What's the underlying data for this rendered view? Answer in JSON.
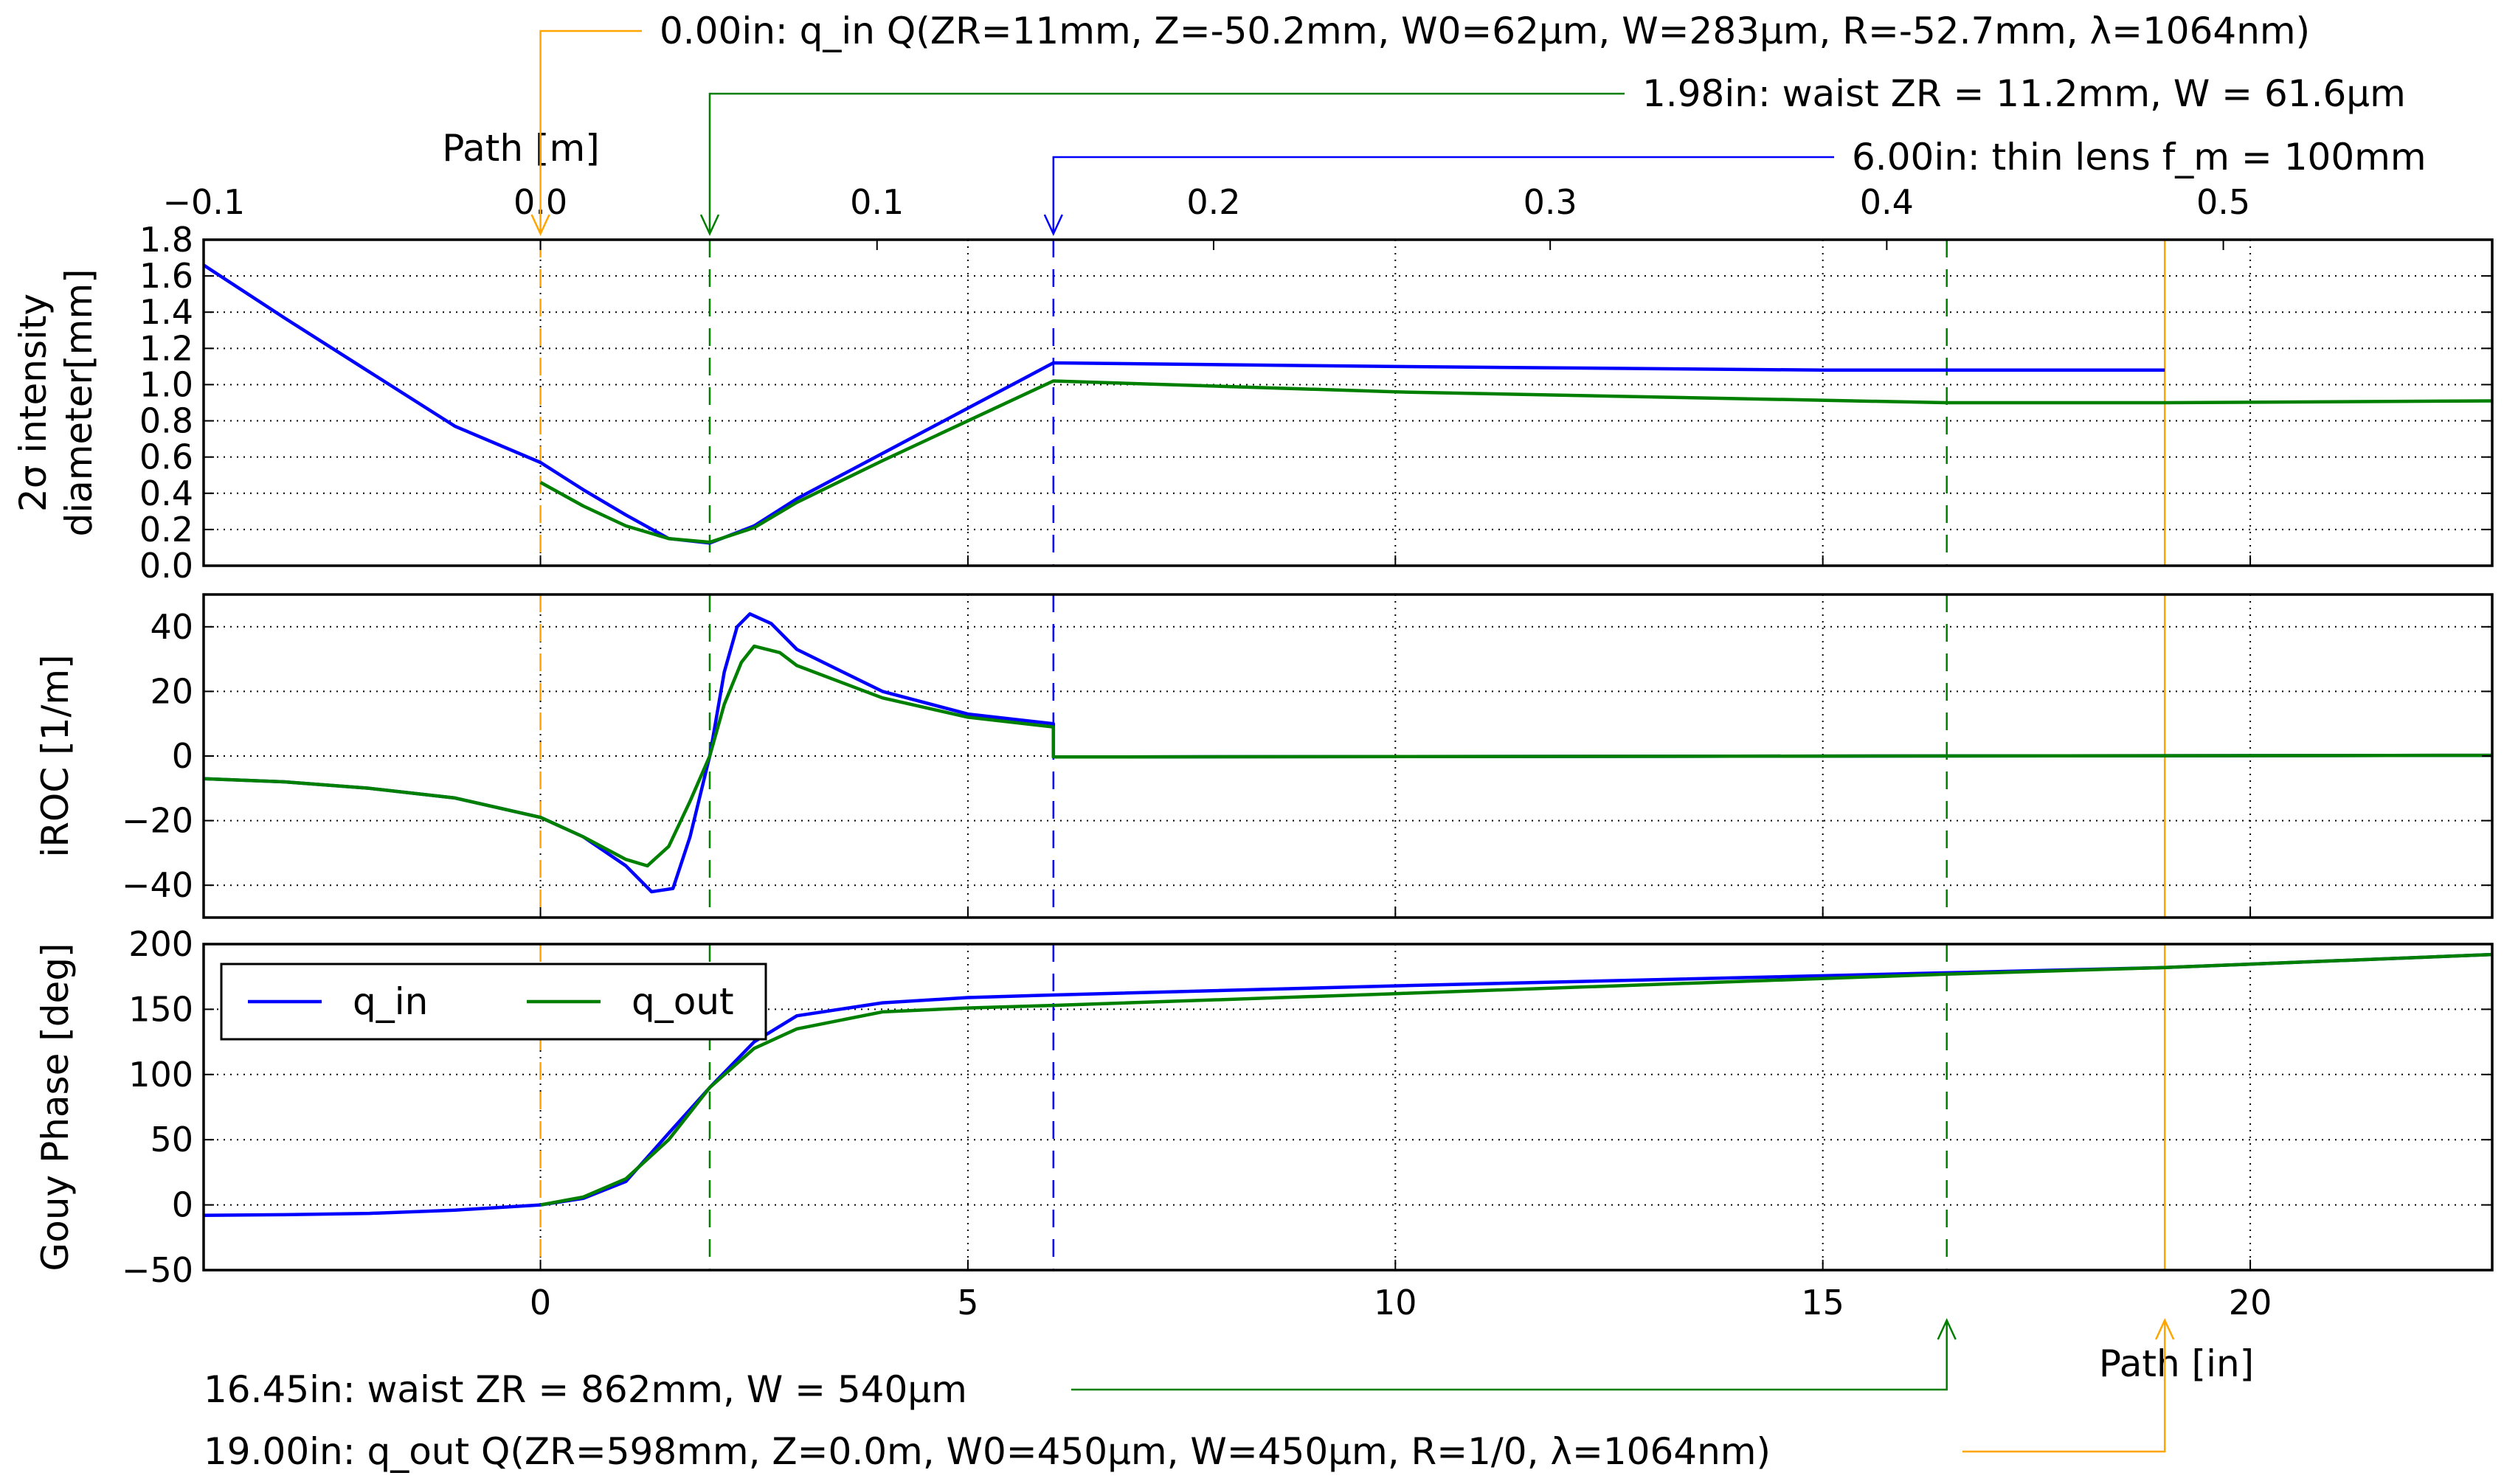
{
  "chart_data": {
    "type": "line",
    "x_unit": "in",
    "xlim": [
      -3.94,
      22.83
    ],
    "x_bottom_label": "Path [in]",
    "x_top_label": "Path [m]",
    "x_bottom_ticks": [
      "0",
      "5",
      "10",
      "15",
      "20"
    ],
    "x_top_ticks": [
      "−0.1",
      "0.0",
      "0.1",
      "0.2",
      "0.3",
      "0.4",
      "0.5"
    ],
    "grid": true,
    "legend": {
      "position": "upper-left of bottom panel",
      "entries": [
        {
          "label": "q_in",
          "color": "#0000ff"
        },
        {
          "label": "q_out",
          "color": "#007f00"
        }
      ]
    },
    "panels": [
      {
        "ylabel_line1": "2σ intensity",
        "ylabel_line2": "diameter[mm]",
        "ylim": [
          0,
          1.8
        ],
        "yticks": [
          "0.0",
          "0.2",
          "0.4",
          "0.6",
          "0.8",
          "1.0",
          "1.2",
          "1.4",
          "1.6",
          "1.8"
        ],
        "series": [
          {
            "name": "q_in",
            "color": "#0000ff",
            "x": [
              -3.94,
              -3,
              -2,
              -1,
              0,
              0.5,
              1.0,
              1.5,
              1.98,
              2.5,
              3,
              4,
              5,
              6.0,
              6.0,
              10,
              15,
              19.0
            ],
            "y": [
              1.66,
              1.37,
              1.07,
              0.77,
              0.57,
              0.42,
              0.28,
              0.15,
              0.125,
              0.22,
              0.37,
              0.62,
              0.87,
              1.12,
              1.12,
              1.1,
              1.08,
              1.08
            ]
          },
          {
            "name": "q_out",
            "color": "#007f00",
            "x": [
              0,
              0.5,
              1.0,
              1.5,
              1.98,
              2.5,
              3,
              4,
              5,
              6.0,
              6.0,
              10,
              16.45,
              19,
              22.83
            ],
            "y": [
              0.46,
              0.33,
              0.22,
              0.15,
              0.13,
              0.21,
              0.35,
              0.58,
              0.8,
              1.02,
              1.02,
              0.96,
              0.9,
              0.9,
              0.91
            ]
          }
        ]
      },
      {
        "ylabel_line1": "iROC [1/m]",
        "ylim": [
          -50,
          50
        ],
        "yticks": [
          "−40",
          "−20",
          "0",
          "20",
          "40"
        ],
        "series": [
          {
            "name": "q_in",
            "color": "#0000ff",
            "x": [
              -3.94,
              -3,
              -2,
              -1,
              0,
              0.5,
              1.0,
              1.3,
              1.55,
              1.75,
              1.98,
              2.15,
              2.3,
              2.45,
              2.7,
              3,
              4,
              5,
              6.0,
              6.0,
              22.83
            ],
            "y": [
              -7,
              -8,
              -10,
              -13,
              -19,
              -25,
              -34,
              -42,
              -41,
              -25,
              0,
              26,
              40,
              44,
              41,
              33,
              20,
              13,
              10,
              -0.3,
              0.2
            ]
          },
          {
            "name": "q_out",
            "color": "#007f00",
            "x": [
              -3.94,
              -3,
              -2,
              -1,
              0,
              0.5,
              1.0,
              1.25,
              1.5,
              1.75,
              1.98,
              2.15,
              2.35,
              2.5,
              2.8,
              3,
              4,
              5,
              6.0,
              6.0,
              22.83
            ],
            "y": [
              -7,
              -8,
              -10,
              -13,
              -19,
              -25,
              -32,
              -34,
              -28,
              -14,
              0,
              16,
              29,
              34,
              32,
              28,
              18,
              12,
              9,
              -0.3,
              0.2
            ]
          }
        ]
      },
      {
        "ylabel_line1": "Gouy Phase [deg]",
        "ylim": [
          -50,
          200
        ],
        "yticks": [
          "−50",
          "0",
          "50",
          "100",
          "150",
          "200"
        ],
        "series": [
          {
            "name": "q_in",
            "color": "#0000ff",
            "x": [
              -3.94,
              -3,
              -2,
              -1,
              0,
              0.5,
              1.0,
              1.5,
              1.98,
              2.5,
              3,
              4,
              5,
              6.0,
              10,
              16.45,
              19,
              22.83
            ],
            "y": [
              -8,
              -7.5,
              -6.5,
              -4,
              0,
              5,
              18,
              55,
              90,
              125,
              145,
              155,
              159,
              161,
              168,
              178,
              182,
              192
            ]
          },
          {
            "name": "q_out",
            "color": "#007f00",
            "x": [
              0,
              0.5,
              1.0,
              1.5,
              1.98,
              2.5,
              3,
              4,
              5,
              6.0,
              10,
              16.45,
              19,
              22.83
            ],
            "y": [
              0,
              6,
              20,
              50,
              90,
              120,
              135,
              148,
              151,
              153,
              162,
              177,
              182,
              192
            ]
          }
        ]
      }
    ],
    "markers": [
      {
        "x": 0.0,
        "color": "#ffa500",
        "dashed": true,
        "side": "top",
        "text": "0.00in: q_in Q(ZR=11mm, Z=-50.2mm, W0=62μm, W=283μm, R=-52.7mm, λ=1064nm)"
      },
      {
        "x": 1.98,
        "color": "#007f00",
        "dashed": true,
        "side": "top",
        "text": "1.98in: waist ZR = 11.2mm, W = 61.6μm"
      },
      {
        "x": 6.0,
        "color": "#0000ff",
        "dashed": true,
        "side": "top",
        "text": "6.00in: thin lens f_m = 100mm"
      },
      {
        "x": 16.45,
        "color": "#007f00",
        "dashed": true,
        "side": "bottom",
        "text": "16.45in: waist ZR = 862mm, W = 540μm"
      },
      {
        "x": 19.0,
        "color": "#ffa500",
        "dashed": false,
        "side": "bottom",
        "text": "19.00in: q_out Q(ZR=598mm, Z=0.0m, W0=450μm, W=450μm, R=1/0, λ=1064nm)"
      }
    ]
  }
}
